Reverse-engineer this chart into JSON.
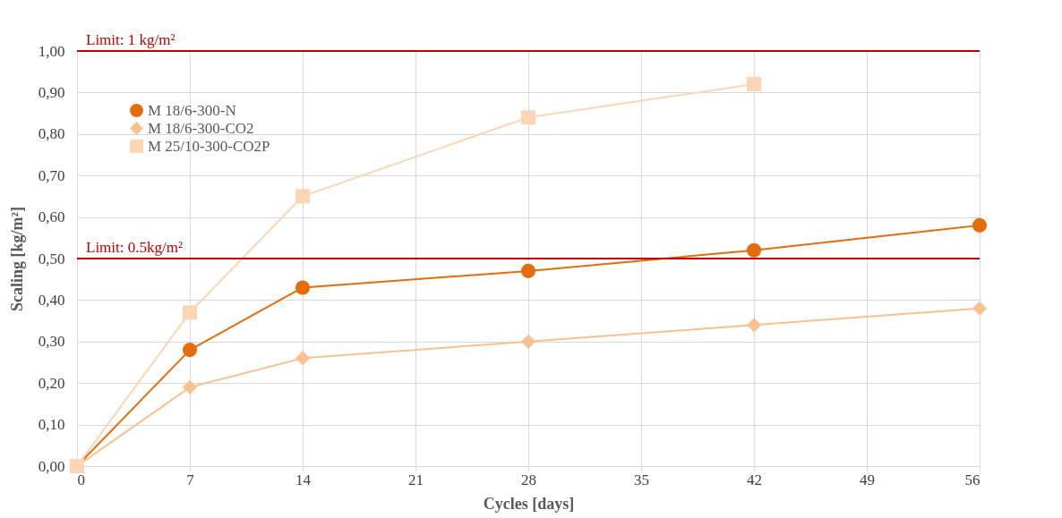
{
  "chart_data": {
    "type": "line",
    "xlabel": "Cycles [days]",
    "ylabel": "Scaling [kg/m²]",
    "xlim": [
      0,
      56
    ],
    "xticks": [
      0,
      7,
      14,
      21,
      28,
      35,
      42,
      49,
      56
    ],
    "ylim": [
      0,
      1
    ],
    "yticks": [
      {
        "value": 0,
        "label": "0,00"
      },
      {
        "value": 0.1,
        "label": "0,10"
      },
      {
        "value": 0.2,
        "label": "0,20"
      },
      {
        "value": 0.3,
        "label": "0,30"
      },
      {
        "value": 0.4,
        "label": "0,40"
      },
      {
        "value": 0.5,
        "label": "0,50"
      },
      {
        "value": 0.6,
        "label": "0,60"
      },
      {
        "value": 0.7,
        "label": "0,70"
      },
      {
        "value": 0.8,
        "label": "0,80"
      },
      {
        "value": 0.9,
        "label": "0,90"
      },
      {
        "value": 1,
        "label": "1,00"
      }
    ],
    "grid": true,
    "legend": "top left",
    "line_style": "solid",
    "series": [
      {
        "name": "M 18/6-300-N",
        "color": "#e46c0a",
        "marker": "circle",
        "x": [
          0,
          7,
          14,
          28,
          42,
          56
        ],
        "values": [
          0,
          0.28,
          0.43,
          0.47,
          0.52,
          0.58
        ]
      },
      {
        "name": "M 18/6-300-CO2",
        "color": "#fac090",
        "marker": "diamond",
        "x": [
          0,
          7,
          14,
          28,
          42,
          56
        ],
        "values": [
          0,
          0.19,
          0.26,
          0.3,
          0.34,
          0.38
        ]
      },
      {
        "name": "M 25/10-300-CO2P",
        "color": "#fcd5b5",
        "marker": "square",
        "x": [
          0,
          7,
          14,
          28,
          42
        ],
        "values": [
          0,
          0.37,
          0.65,
          0.84,
          0.92
        ]
      }
    ],
    "ref_lines": [
      {
        "axis": "y",
        "value": 1,
        "label": "Limit: 1 kg/m²",
        "color": "#c00000"
      },
      {
        "axis": "y",
        "value": 0.5,
        "label": "Limit: 0.5kg/m²",
        "color": "#c00000"
      }
    ]
  }
}
